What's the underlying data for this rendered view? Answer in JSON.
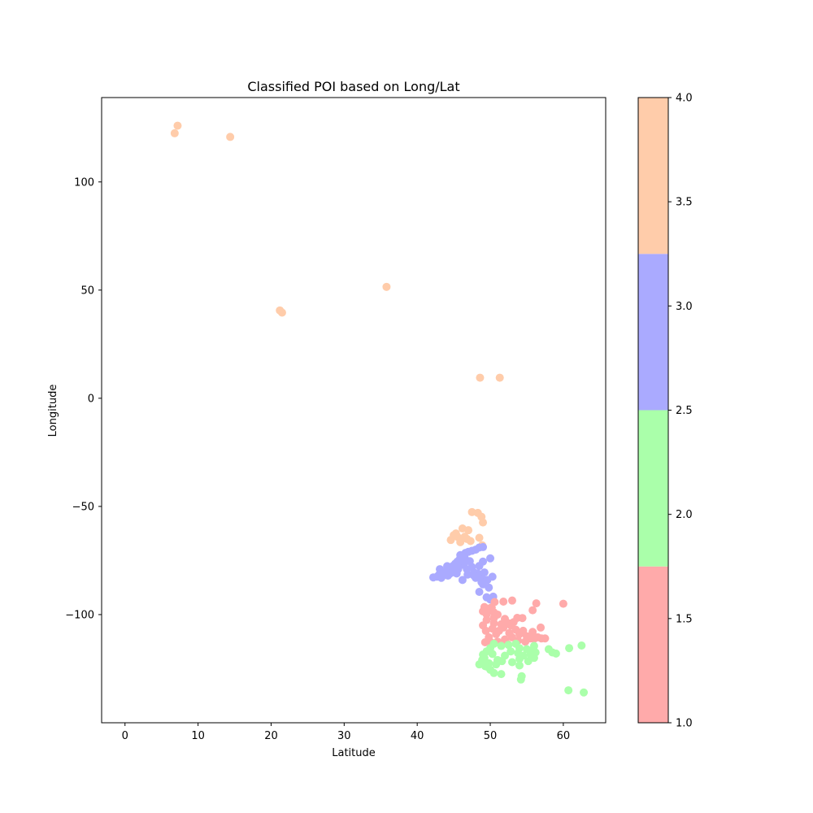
{
  "chart_data": {
    "type": "scatter",
    "title": "Classified POI based on Long/Lat",
    "xlabel": "Latitude",
    "ylabel": "Longitude",
    "xlim": [
      -3.2,
      65.8
    ],
    "ylim": [
      -150,
      139
    ],
    "xticks": [
      0,
      10,
      20,
      30,
      40,
      50,
      60
    ],
    "yticks": [
      -100,
      -50,
      0,
      50,
      100
    ],
    "grid": false,
    "colorbar": {
      "range": [
        1.0,
        4.0
      ],
      "ticks": [
        "1.0",
        "1.5",
        "2.0",
        "2.5",
        "3.0",
        "3.5",
        "4.0"
      ],
      "classes": [
        {
          "class": 1,
          "color": "#ffaaaa"
        },
        {
          "class": 2,
          "color": "#aaffaa"
        },
        {
          "class": 3,
          "color": "#aaaaff"
        },
        {
          "class": 4,
          "color": "#ffccaa"
        }
      ]
    },
    "series": [
      {
        "class": 4,
        "color": "#ffccaa",
        "points": [
          [
            7.2,
            126
          ],
          [
            6.8,
            122.5
          ],
          [
            14.4,
            120.8
          ],
          [
            35.8,
            51.5
          ],
          [
            21.2,
            40.6
          ],
          [
            21.5,
            39.6
          ],
          [
            48.6,
            9.5
          ],
          [
            51.3,
            9.5
          ],
          [
            47.5,
            -52.6
          ],
          [
            48.3,
            -53.0
          ],
          [
            48.8,
            -54.8
          ],
          [
            49.0,
            -57.4
          ],
          [
            47.0,
            -61.0
          ],
          [
            46.2,
            -60.2
          ],
          [
            45.0,
            -63.3
          ],
          [
            45.5,
            -64.0
          ],
          [
            44.6,
            -65.5
          ],
          [
            46.5,
            -64.0
          ],
          [
            47.3,
            -66.0
          ],
          [
            48.5,
            -64.5
          ],
          [
            48.9,
            -68.0
          ],
          [
            45.9,
            -66.5
          ],
          [
            46.8,
            -65.0
          ],
          [
            45.3,
            -62.5
          ]
        ]
      },
      {
        "class": 3,
        "color": "#aaaaff",
        "points": [
          [
            42.2,
            -82.8
          ],
          [
            42.7,
            -82.5
          ],
          [
            43.0,
            -81.5
          ],
          [
            43.5,
            -80.7
          ],
          [
            44.0,
            -80.0
          ],
          [
            44.3,
            -79.5
          ],
          [
            44.6,
            -78.5
          ],
          [
            44.9,
            -77.5
          ],
          [
            45.2,
            -76.5
          ],
          [
            45.5,
            -75.5
          ],
          [
            45.8,
            -74.5
          ],
          [
            46.0,
            -73.5
          ],
          [
            46.3,
            -72.8
          ],
          [
            46.6,
            -71.5
          ],
          [
            47.0,
            -71.0
          ],
          [
            47.5,
            -70.5
          ],
          [
            48.0,
            -70.0
          ],
          [
            48.5,
            -69.0
          ],
          [
            49.0,
            -68.8
          ],
          [
            43.1,
            -79.0
          ],
          [
            43.8,
            -81.0
          ],
          [
            44.2,
            -82.0
          ],
          [
            45.0,
            -80.0
          ],
          [
            45.6,
            -79.0
          ],
          [
            46.1,
            -77.0
          ],
          [
            46.5,
            -76.0
          ],
          [
            46.8,
            -79.0
          ],
          [
            47.5,
            -78.0
          ],
          [
            47.8,
            -80.5
          ],
          [
            48.3,
            -81.0
          ],
          [
            48.0,
            -83.0
          ],
          [
            48.8,
            -82.0
          ],
          [
            49.2,
            -80.5
          ],
          [
            50.3,
            -82.5
          ],
          [
            50.0,
            -74.0
          ],
          [
            46.2,
            -84.0
          ],
          [
            46.9,
            -81.5
          ],
          [
            45.4,
            -81.0
          ],
          [
            44.8,
            -80.5
          ],
          [
            44.4,
            -81.3
          ],
          [
            43.3,
            -83.0
          ],
          [
            44.1,
            -77.6
          ],
          [
            45.9,
            -72.5
          ],
          [
            46.5,
            -73.8
          ],
          [
            47.2,
            -75.3
          ],
          [
            48.5,
            -77.5
          ],
          [
            49.0,
            -75.5
          ],
          [
            48.5,
            -89.5
          ],
          [
            49.0,
            -86.0
          ],
          [
            49.8,
            -87.5
          ],
          [
            49.5,
            -92.0
          ],
          [
            50.0,
            -93.0
          ],
          [
            50.4,
            -91.7
          ],
          [
            48.8,
            -85.0
          ],
          [
            47.7,
            -81.8
          ],
          [
            49.6,
            -84.0
          ]
        ]
      },
      {
        "class": 1,
        "color": "#ffaaaa",
        "points": [
          [
            60.0,
            -95.0
          ],
          [
            56.3,
            -94.8
          ],
          [
            55.8,
            -98.0
          ],
          [
            53.0,
            -93.5
          ],
          [
            51.8,
            -94.0
          ],
          [
            50.6,
            -94.2
          ],
          [
            49.2,
            -96.5
          ],
          [
            50.0,
            -97.0
          ],
          [
            50.5,
            -99.0
          ],
          [
            49.0,
            -98.5
          ],
          [
            51.0,
            -100.0
          ],
          [
            52.0,
            -102.0
          ],
          [
            53.7,
            -101.5
          ],
          [
            54.4,
            -101.6
          ],
          [
            53.2,
            -103.5
          ],
          [
            52.8,
            -105.0
          ],
          [
            51.8,
            -106.0
          ],
          [
            50.5,
            -104.0
          ],
          [
            49.5,
            -102.5
          ],
          [
            49.0,
            -105.0
          ],
          [
            50.3,
            -106.5
          ],
          [
            51.2,
            -107.5
          ],
          [
            52.6,
            -108.5
          ],
          [
            53.5,
            -107.0
          ],
          [
            54.0,
            -109.0
          ],
          [
            55.0,
            -110.0
          ],
          [
            55.8,
            -108.0
          ],
          [
            56.5,
            -110.5
          ],
          [
            57.0,
            -111.0
          ],
          [
            56.9,
            -106.0
          ],
          [
            53.0,
            -110.5
          ],
          [
            52.0,
            -111.5
          ],
          [
            51.0,
            -112.5
          ],
          [
            50.2,
            -113.0
          ],
          [
            49.3,
            -112.8
          ],
          [
            49.8,
            -110.5
          ],
          [
            50.8,
            -109.0
          ],
          [
            54.5,
            -107.5
          ],
          [
            55.5,
            -111.0
          ],
          [
            51.5,
            -104.5
          ],
          [
            52.5,
            -104.0
          ],
          [
            50.5,
            -101.5
          ],
          [
            49.4,
            -107.5
          ],
          [
            53.8,
            -112.0
          ],
          [
            52.3,
            -113.4
          ],
          [
            57.5,
            -111.0
          ],
          [
            56.0,
            -111.2
          ],
          [
            54.8,
            -112.5
          ],
          [
            49.5,
            -99.8
          ],
          [
            50.2,
            -96.7
          ]
        ]
      },
      {
        "class": 2,
        "color": "#aaffaa",
        "points": [
          [
            62.5,
            -114.3
          ],
          [
            58.0,
            -116.0
          ],
          [
            58.5,
            -117.5
          ],
          [
            59.0,
            -118.0
          ],
          [
            60.8,
            -115.5
          ],
          [
            56.0,
            -114.5
          ],
          [
            55.0,
            -116.0
          ],
          [
            54.0,
            -115.5
          ],
          [
            53.5,
            -113.5
          ],
          [
            52.5,
            -114.0
          ],
          [
            51.5,
            -114.5
          ],
          [
            50.5,
            -113.5
          ],
          [
            50.0,
            -115.5
          ],
          [
            49.5,
            -117.0
          ],
          [
            49.0,
            -118.5
          ],
          [
            49.2,
            -120.0
          ],
          [
            49.0,
            -122.0
          ],
          [
            48.5,
            -123.0
          ],
          [
            49.5,
            -124.0
          ],
          [
            50.0,
            -125.5
          ],
          [
            50.5,
            -127.0
          ],
          [
            51.5,
            -127.5
          ],
          [
            53.0,
            -122.0
          ],
          [
            54.0,
            -120.5
          ],
          [
            54.5,
            -119.0
          ],
          [
            55.5,
            -118.5
          ],
          [
            56.0,
            -120.0
          ],
          [
            55.2,
            -121.5
          ],
          [
            54.0,
            -123.5
          ],
          [
            54.3,
            -128.5
          ],
          [
            54.2,
            -130.0
          ],
          [
            60.7,
            -135.0
          ],
          [
            62.8,
            -136.0
          ],
          [
            51.0,
            -121.0
          ],
          [
            52.0,
            -119.0
          ],
          [
            50.3,
            -118.2
          ],
          [
            52.8,
            -117.0
          ],
          [
            53.8,
            -117.8
          ],
          [
            51.6,
            -121.5
          ],
          [
            50.8,
            -123.0
          ],
          [
            49.8,
            -122.5
          ],
          [
            48.9,
            -121.0
          ],
          [
            49.3,
            -123.8
          ],
          [
            55.6,
            -116.8
          ],
          [
            56.2,
            -117.5
          ]
        ]
      }
    ]
  }
}
